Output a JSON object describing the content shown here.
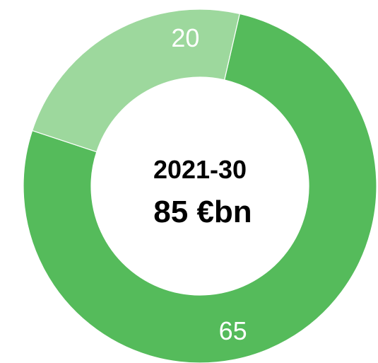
{
  "chart_data": {
    "type": "pie",
    "title": "",
    "center_label": {
      "period": "2021-30",
      "total": "85 €bn"
    },
    "categories": [
      "",
      ""
    ],
    "values": [
      65,
      20
    ],
    "data_labels": [
      "65",
      "20"
    ],
    "colors": [
      "#55bb5b",
      "#9dd89d"
    ],
    "donut": true,
    "legend": "none"
  }
}
